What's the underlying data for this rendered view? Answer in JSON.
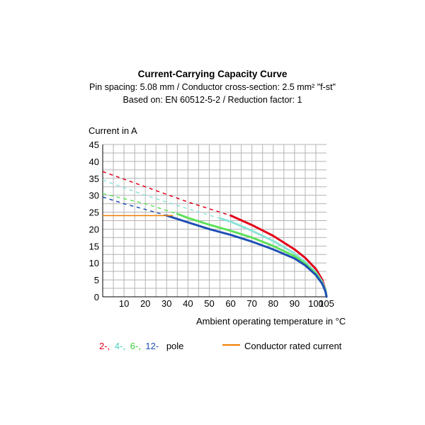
{
  "chart_data": {
    "type": "line",
    "title": "Current-Carrying Capacity Curve",
    "subtitle_lines": [
      "Pin spacing: 5.08 mm / Conductor cross-section: 2.5 mm² \"f-st\"",
      "Based on: EN 60512-5-2 / Reduction factor: 1"
    ],
    "ylabel": "Current in A",
    "xlabel": "Ambient operating temperature in °C",
    "x_ticks": [
      10,
      20,
      30,
      40,
      50,
      60,
      70,
      80,
      90,
      100,
      105
    ],
    "y_ticks": [
      0,
      5,
      10,
      15,
      20,
      25,
      30,
      35,
      40,
      45
    ],
    "xlim": [
      0,
      105
    ],
    "ylim": [
      0,
      45
    ],
    "grid": true,
    "rated_current": {
      "name": "Conductor rated current",
      "value": 24,
      "x_range": [
        0,
        33
      ],
      "color": "#f07d00"
    },
    "series": [
      {
        "name": "2-",
        "color": "#e2001a",
        "dashed": [
          [
            0,
            37
          ],
          [
            20,
            32.5
          ],
          [
            40,
            28
          ],
          [
            60,
            24
          ]
        ],
        "solid": [
          [
            60,
            24
          ],
          [
            70,
            21.2
          ],
          [
            80,
            18
          ],
          [
            90,
            14
          ],
          [
            95,
            11.5
          ],
          [
            100,
            8.2
          ],
          [
            103,
            5
          ],
          [
            104.5,
            2
          ],
          [
            105,
            0
          ]
        ]
      },
      {
        "name": "4-",
        "color": "#8be3d8",
        "dashed": [
          [
            0,
            34.5
          ],
          [
            20,
            30
          ],
          [
            40,
            26
          ],
          [
            55,
            23.2
          ]
        ],
        "solid": [
          [
            55,
            23.2
          ],
          [
            60,
            22.2
          ],
          [
            70,
            19.5
          ],
          [
            80,
            16.5
          ],
          [
            90,
            12.8
          ],
          [
            95,
            10.3
          ],
          [
            100,
            7.2
          ],
          [
            103,
            4.4
          ],
          [
            104.5,
            2
          ],
          [
            105,
            0
          ]
        ]
      },
      {
        "name": "6-",
        "color": "#5ee05a",
        "dashed": [
          [
            0,
            30.5
          ],
          [
            20,
            27.5
          ],
          [
            35,
            24.5
          ]
        ],
        "solid": [
          [
            35,
            24.5
          ],
          [
            40,
            23.3
          ],
          [
            50,
            21.3
          ],
          [
            60,
            19.5
          ],
          [
            70,
            17.5
          ],
          [
            80,
            15
          ],
          [
            90,
            12
          ],
          [
            95,
            9.8
          ],
          [
            100,
            6.8
          ],
          [
            103,
            4
          ],
          [
            104.5,
            1.8
          ],
          [
            105,
            0
          ]
        ]
      },
      {
        "name": "12-",
        "color": "#1f4fb4",
        "dashed": [
          [
            0,
            29.5
          ],
          [
            10,
            27.5
          ],
          [
            20,
            25.8
          ],
          [
            30,
            24
          ]
        ],
        "solid": [
          [
            30,
            24
          ],
          [
            40,
            22
          ],
          [
            50,
            20
          ],
          [
            60,
            18.3
          ],
          [
            70,
            16.3
          ],
          [
            80,
            14
          ],
          [
            90,
            11.3
          ],
          [
            95,
            9.3
          ],
          [
            100,
            6.4
          ],
          [
            103,
            3.8
          ],
          [
            104.5,
            1.6
          ],
          [
            105,
            0
          ]
        ]
      }
    ],
    "legend": {
      "poles_suffix": "pole",
      "poles_labels": [
        "2-,",
        "4-,",
        "6-,",
        "12-"
      ],
      "poles_colors": [
        "#e2001a",
        "#4ed1c2",
        "#3fcf3a",
        "#1f4fb4"
      ],
      "rated_label": "Conductor rated current"
    }
  }
}
